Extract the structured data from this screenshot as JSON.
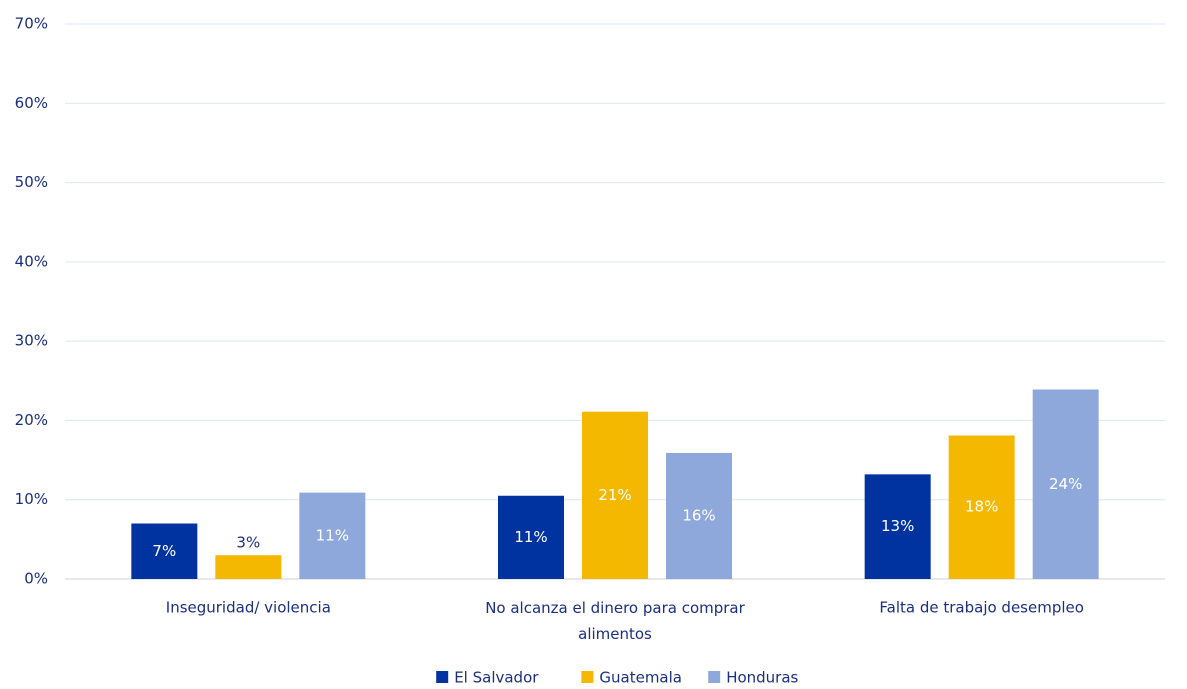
{
  "chart_data": {
    "type": "bar",
    "categories": [
      "Inseguridad/ violencia",
      "No alcanza el dinero para comprar alimentos",
      "Falta de trabajo desempleo"
    ],
    "series": [
      {
        "name": "El Salvador",
        "color": "#0033a0",
        "values": [
          7,
          10.5,
          13.2
        ],
        "value_labels": [
          "7%",
          "11%",
          "13%"
        ]
      },
      {
        "name": "Guatemala",
        "color": "#f5b800",
        "values": [
          3,
          21.1,
          18.1
        ],
        "value_labels": [
          "3%",
          "21%",
          "18%"
        ]
      },
      {
        "name": "Honduras",
        "color": "#8fa8dc",
        "values": [
          10.9,
          15.9,
          23.9
        ],
        "value_labels": [
          "11%",
          "16%",
          "24%"
        ]
      }
    ],
    "ylim": [
      0,
      70
    ],
    "yticks": [
      {
        "value": 0,
        "label": "0%"
      },
      {
        "value": 10,
        "label": "10%"
      },
      {
        "value": 20,
        "label": "20%"
      },
      {
        "value": 30,
        "label": "30%"
      },
      {
        "value": 40,
        "label": "40%"
      },
      {
        "value": 50,
        "label": "50%"
      },
      {
        "value": 60,
        "label": "60%"
      },
      {
        "value": 70,
        "label": "70%"
      }
    ],
    "grid": true,
    "legend": "bottom"
  }
}
